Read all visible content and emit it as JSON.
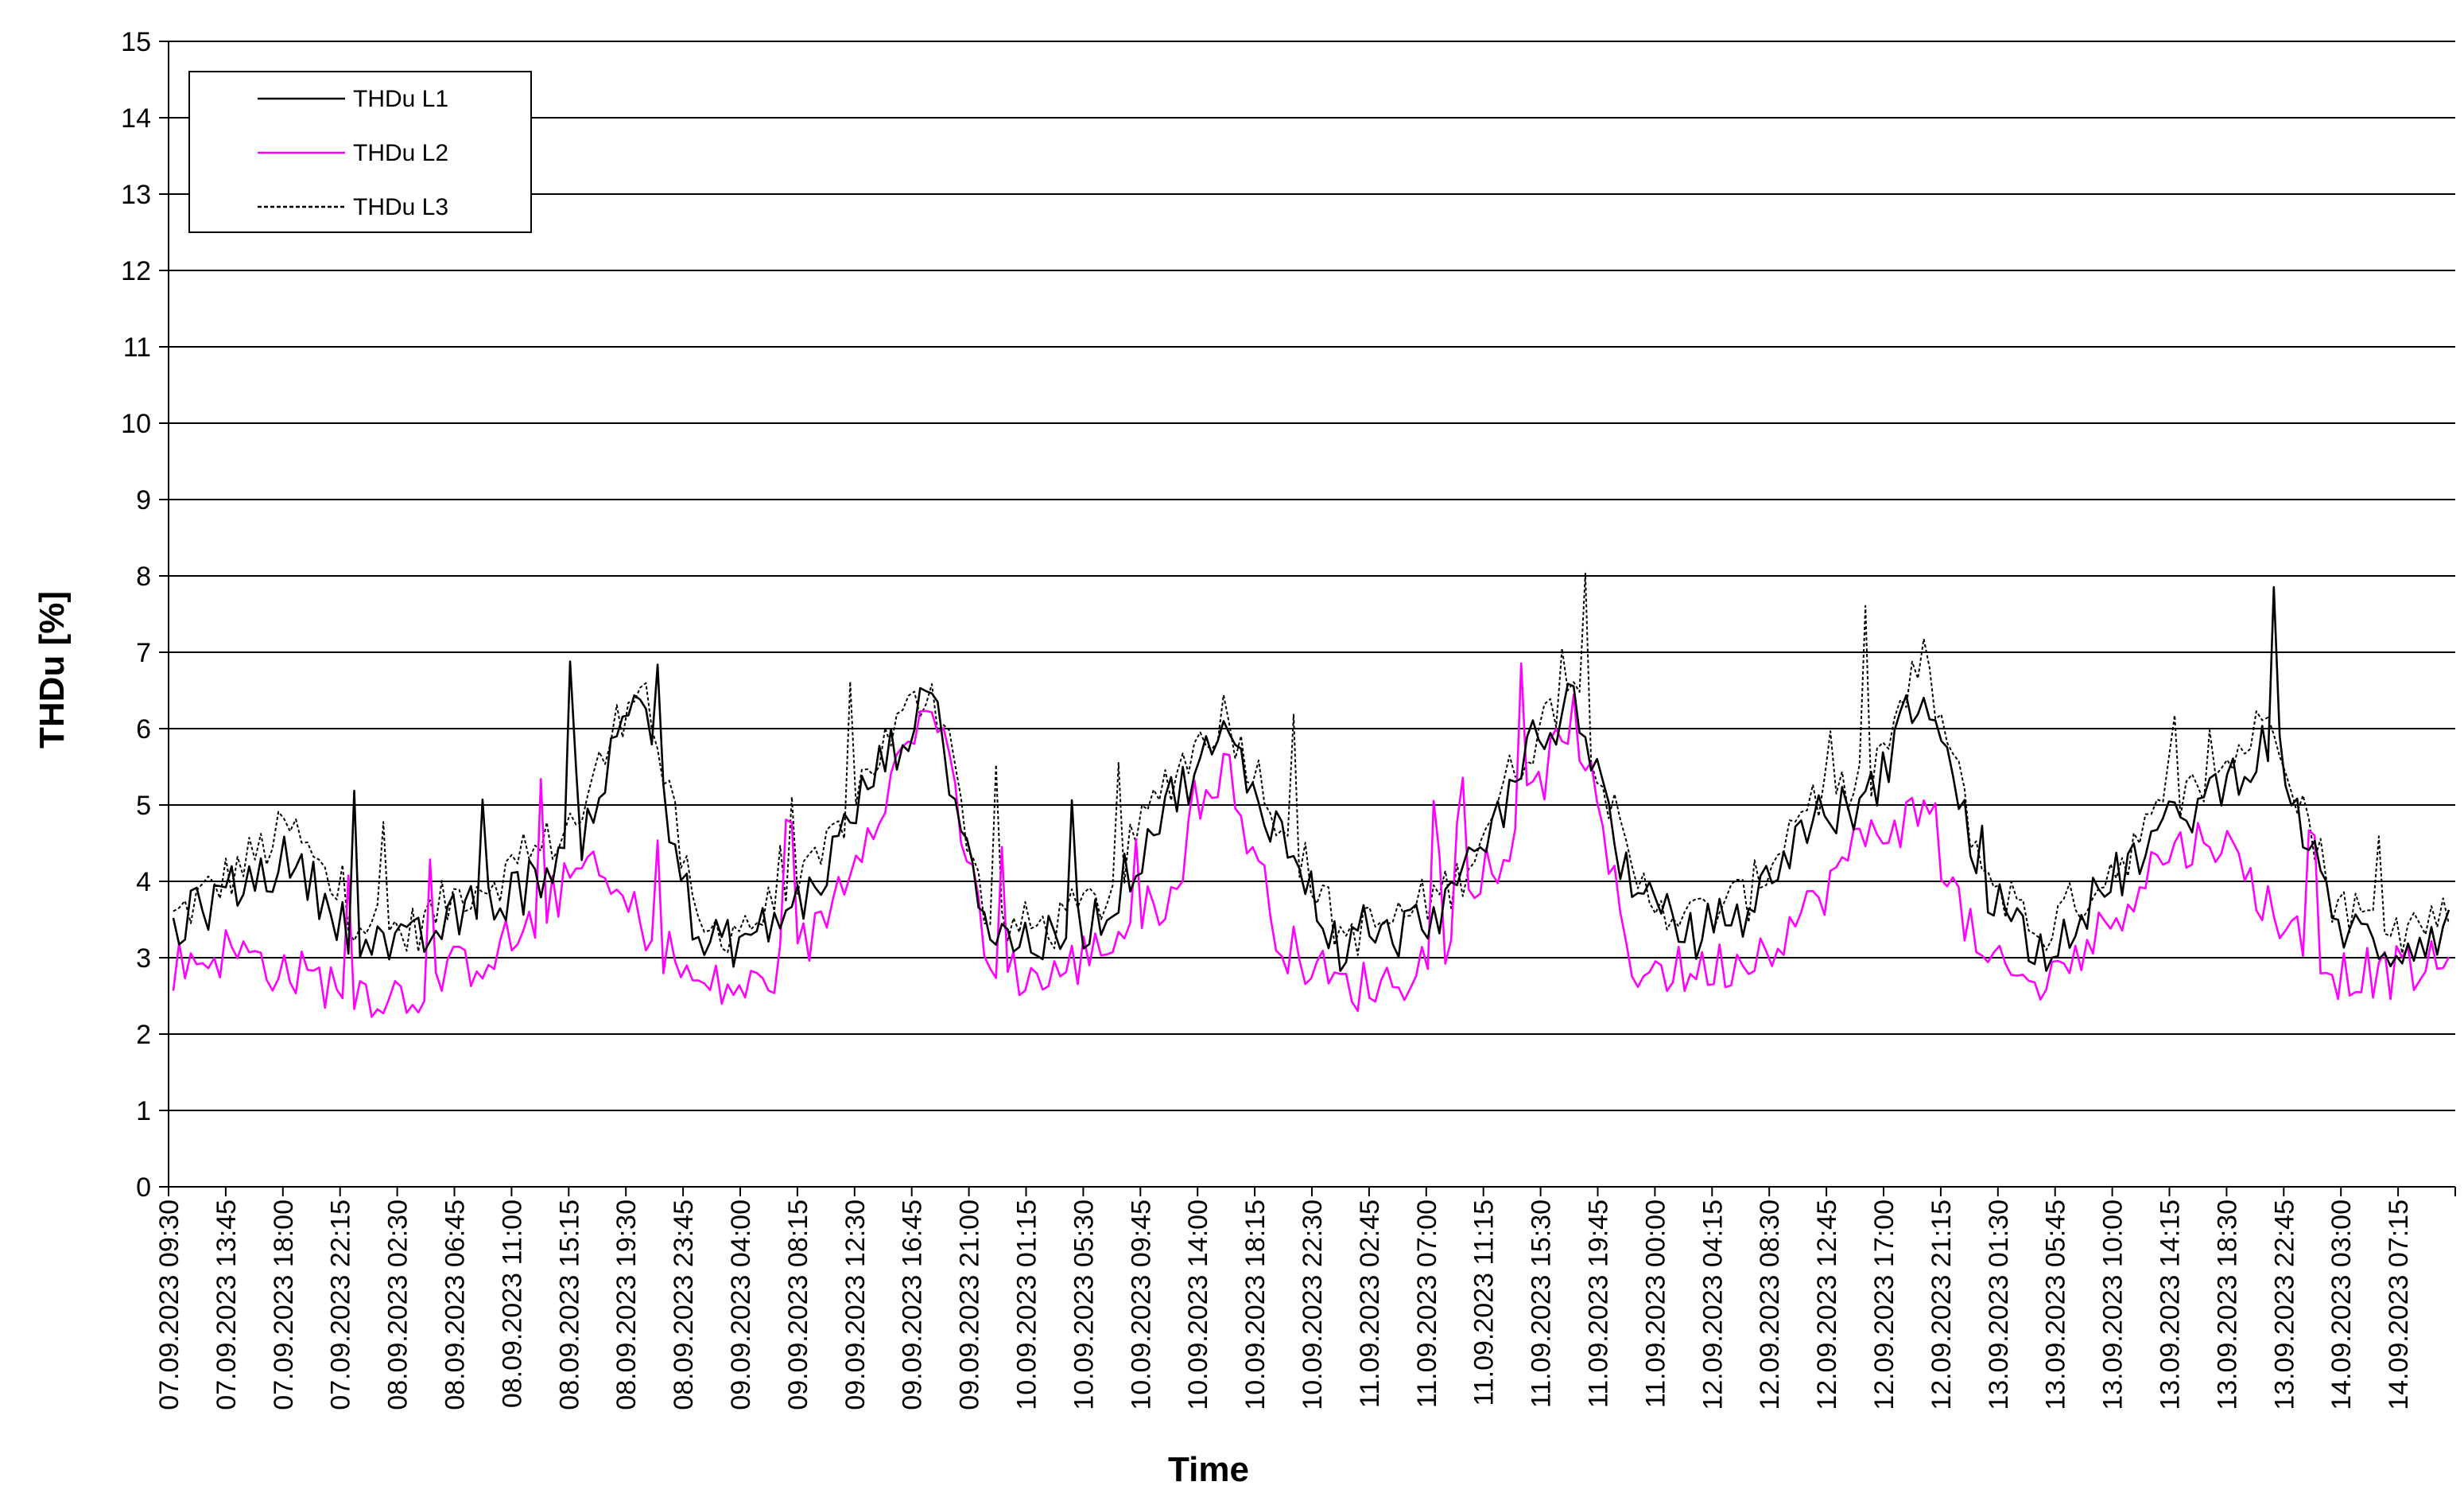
{
  "chart_data": {
    "type": "line",
    "xlabel": "Time",
    "ylabel": "THDu [%]",
    "ylim": [
      0,
      15
    ],
    "yticks": [
      0,
      1,
      2,
      3,
      4,
      5,
      6,
      7,
      8,
      9,
      10,
      11,
      12,
      13,
      14,
      15
    ],
    "grid": "horizontal",
    "legend_position": "top-left",
    "categories": [
      "07.09.2023 09:30",
      "07.09.2023 13:45",
      "07.09.2023 18:00",
      "07.09.2023 22:15",
      "08.09.2023 02:30",
      "08.09.2023 06:45",
      "08.09.2023 11:00",
      "08.09.2023 15:15",
      "08.09.2023 19:30",
      "08.09.2023 23:45",
      "09.09.2023 04:00",
      "09.09.2023 08:15",
      "09.09.2023 12:30",
      "09.09.2023 16:45",
      "09.09.2023 21:00",
      "10.09.2023 01:15",
      "10.09.2023 05:30",
      "10.09.2023 09:45",
      "10.09.2023 14:00",
      "10.09.2023 18:15",
      "10.09.2023 22:30",
      "11.09.2023 02:45",
      "11.09.2023 07:00",
      "11.09.2023 11:15",
      "11.09.2023 15:30",
      "11.09.2023 19:45",
      "11.09.2023 00:00",
      "12.09.2023 04:15",
      "12.09.2023 08:30",
      "12.09.2023 12:45",
      "12.09.2023 17:00",
      "12.09.2023 21:15",
      "13.09.2023 01:30",
      "13.09.2023 05:45",
      "13.09.2023 10:00",
      "13.09.2023 14:15",
      "13.09.2023 18:30",
      "13.09.2023 22:45",
      "14.09.2023 03:00",
      "14.09.2023 07:15"
    ],
    "series": [
      {
        "name": "THDu L1",
        "color": "#000000",
        "dash": "solid",
        "values": [
          3.4,
          3.9,
          4.3,
          3.4,
          3.1,
          3.6,
          3.9,
          4.6,
          6.6,
          3.1,
          3.3,
          3.9,
          5.4,
          6.4,
          3.3,
          3.2,
          3.6,
          5.0,
          5.9,
          4.6,
          3.1,
          3.3,
          3.8,
          5.3,
          6.5,
          3.8,
          3.3,
          3.6,
          4.8,
          5.0,
          6.6,
          4.0,
          3.1,
          3.8,
          4.6,
          5.2,
          5.9,
          3.5,
          3.1,
          3.4
        ]
      },
      {
        "name": "THDu L2",
        "color": "#ff00ff",
        "dash": "solid",
        "values": [
          2.9,
          3.1,
          2.8,
          2.6,
          2.5,
          2.9,
          3.3,
          4.2,
          3.5,
          2.6,
          2.6,
          3.3,
          4.9,
          6.4,
          2.9,
          2.7,
          3.2,
          3.8,
          5.6,
          3.2,
          2.6,
          2.7,
          3.4,
          4.6,
          6.2,
          2.9,
          2.8,
          3.0,
          3.6,
          4.6,
          4.9,
          2.9,
          2.6,
          3.3,
          4.3,
          4.6,
          3.6,
          2.8,
          2.8,
          2.9
        ]
      },
      {
        "name": "THDu L3",
        "color": "#000000",
        "dash": "dashed",
        "values": [
          3.5,
          4.1,
          4.7,
          3.6,
          3.3,
          3.9,
          4.2,
          4.9,
          6.8,
          3.3,
          3.5,
          4.1,
          5.6,
          6.6,
          3.4,
          3.4,
          3.8,
          5.3,
          6.2,
          4.8,
          3.3,
          3.5,
          4.0,
          5.5,
          6.7,
          4.0,
          3.5,
          3.8,
          5.1,
          5.2,
          6.9,
          4.2,
          3.3,
          4.0,
          4.8,
          5.4,
          6.2,
          3.8,
          3.3,
          3.6
        ]
      }
    ]
  }
}
